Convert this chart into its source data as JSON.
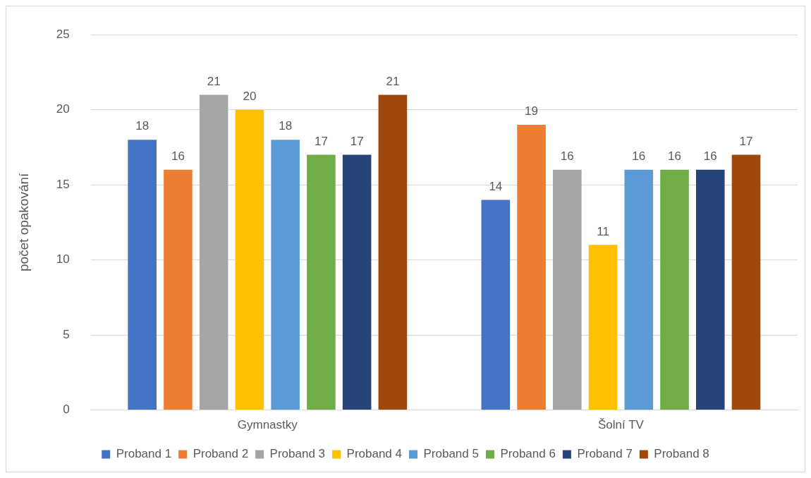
{
  "chart_data": {
    "type": "bar",
    "ylabel": "počet opakování",
    "categories": [
      "Gymnastky",
      "Šolní TV"
    ],
    "series": [
      {
        "name": "Proband 1",
        "color": "#4472c4",
        "values": [
          18,
          14
        ]
      },
      {
        "name": "Proband 2",
        "color": "#ed7d31",
        "values": [
          16,
          19
        ]
      },
      {
        "name": "Proband 3",
        "color": "#a5a5a5",
        "values": [
          21,
          16
        ]
      },
      {
        "name": "Proband 4",
        "color": "#ffc000",
        "values": [
          20,
          11
        ]
      },
      {
        "name": "Proband 5",
        "color": "#5b9bd5",
        "values": [
          18,
          16
        ]
      },
      {
        "name": "Proband 6",
        "color": "#70ad47",
        "values": [
          17,
          16
        ]
      },
      {
        "name": "Proband 7",
        "color": "#264478",
        "values": [
          17,
          16
        ]
      },
      {
        "name": "Proband 8",
        "color": "#9e480e",
        "values": [
          21,
          17
        ]
      }
    ],
    "ylim": [
      0,
      25
    ],
    "yticks": [
      0,
      5,
      10,
      15,
      20,
      25
    ],
    "grid": "y",
    "legend": "bottom",
    "data_labels": true
  }
}
